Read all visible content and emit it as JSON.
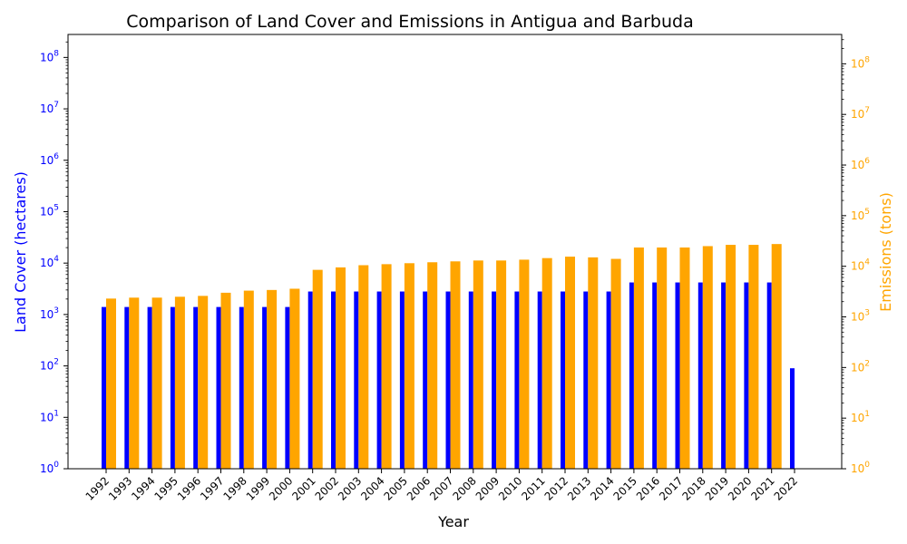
{
  "chart_data": {
    "type": "bar",
    "title": "Comparison of Land Cover and Emissions in Antigua and Barbuda",
    "xlabel": "Year",
    "categories": [
      "1992",
      "1993",
      "1994",
      "1995",
      "1996",
      "1997",
      "1998",
      "1999",
      "2000",
      "2001",
      "2002",
      "2003",
      "2004",
      "2005",
      "2006",
      "2007",
      "2008",
      "2009",
      "2010",
      "2011",
      "2012",
      "2013",
      "2014",
      "2015",
      "2016",
      "2017",
      "2018",
      "2019",
      "2020",
      "2021",
      "2022"
    ],
    "left_axis": {
      "label": "Land Cover (hectares)",
      "scale": "log",
      "ylim": [
        1,
        280000000
      ],
      "ticks": [
        "10^0",
        "10^1",
        "10^2",
        "10^3",
        "10^4",
        "10^5",
        "10^6",
        "10^7",
        "10^8"
      ],
      "color": "#0000ff"
    },
    "right_axis": {
      "label": "Emissions (tons)",
      "scale": "log",
      "ylim": [
        1,
        380000000
      ],
      "ticks": [
        "10^0",
        "10^1",
        "10^2",
        "10^3",
        "10^4",
        "10^5",
        "10^6",
        "10^7",
        "10^8"
      ],
      "color": "#ffa500"
    },
    "series": [
      {
        "axis": "left",
        "color": "#0000ff",
        "values": [
          1400,
          1400,
          1400,
          1400,
          1400,
          1400,
          1400,
          1400,
          1400,
          2800,
          2800,
          2800,
          2800,
          2800,
          2800,
          2800,
          2800,
          2800,
          2800,
          2800,
          2800,
          2800,
          2800,
          4200,
          4200,
          4200,
          4200,
          4200,
          4200,
          4200,
          90
        ]
      },
      {
        "axis": "right",
        "color": "#ffa500",
        "values": [
          2300,
          2400,
          2400,
          2500,
          2600,
          3000,
          3300,
          3400,
          3600,
          8500,
          9500,
          10500,
          11000,
          11500,
          12000,
          12500,
          13000,
          13000,
          13500,
          14500,
          15500,
          15000,
          14000,
          23500,
          23500,
          23500,
          25000,
          26500,
          26500,
          27500,
          null
        ]
      }
    ]
  }
}
